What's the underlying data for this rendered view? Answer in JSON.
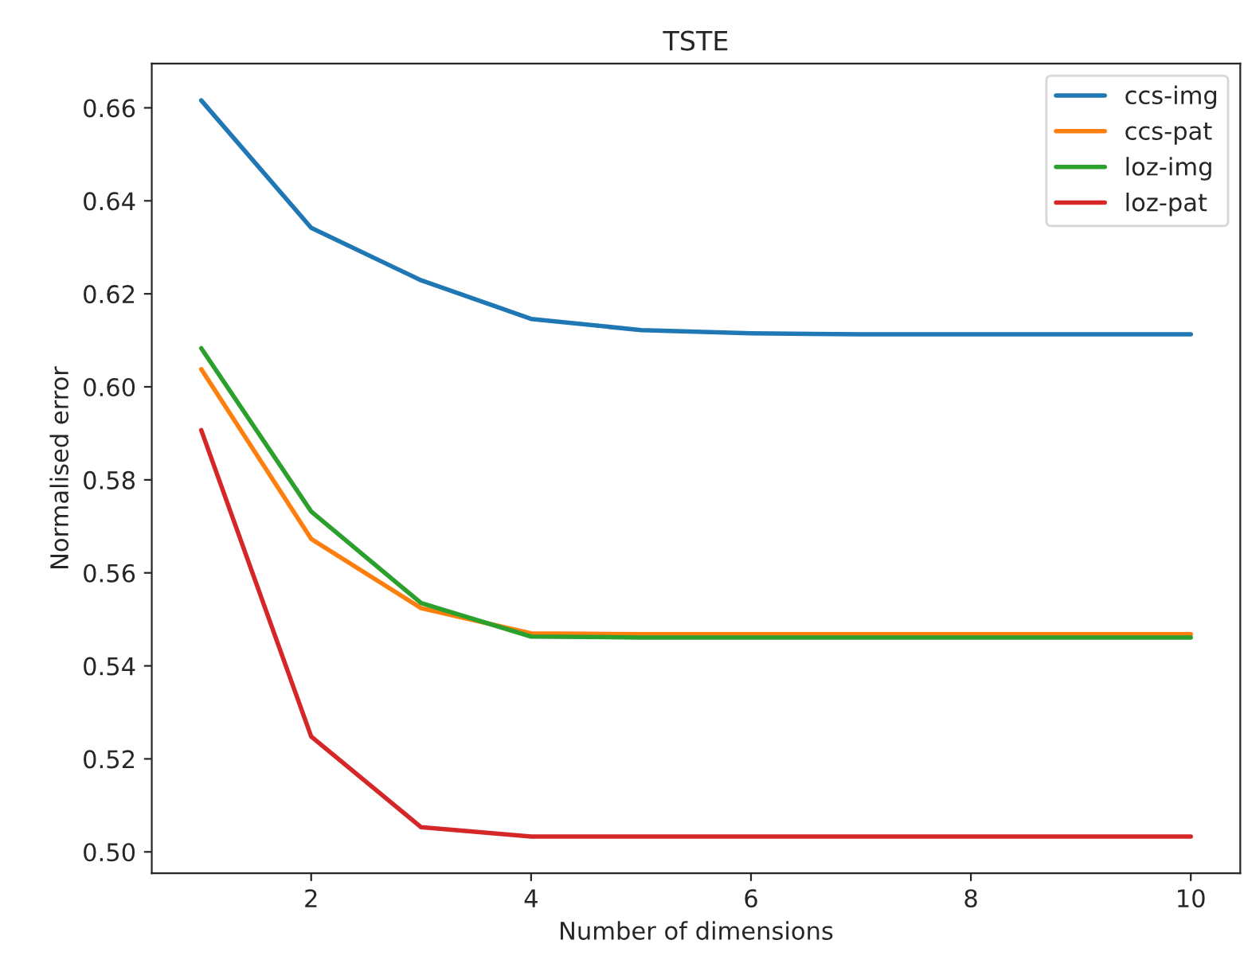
{
  "chart_data": {
    "type": "line",
    "title": "TSTE",
    "xlabel": "Number of dimensions",
    "ylabel": "Normalised error",
    "x": [
      1,
      2,
      3,
      4,
      5,
      6,
      7,
      8,
      9,
      10
    ],
    "series": [
      {
        "name": "ccs-img",
        "color": "#1f77b4",
        "values": [
          0.6616,
          0.6342,
          0.6229,
          0.6146,
          0.6122,
          0.6115,
          0.6113,
          0.6113,
          0.6113,
          0.6113
        ]
      },
      {
        "name": "ccs-pat",
        "color": "#ff7f0e",
        "values": [
          0.6038,
          0.5673,
          0.5524,
          0.547,
          0.5468,
          0.5468,
          0.5468,
          0.5468,
          0.5468,
          0.5468
        ]
      },
      {
        "name": "loz-img",
        "color": "#2ca02c",
        "values": [
          0.6083,
          0.5732,
          0.5535,
          0.5463,
          0.5461,
          0.5461,
          0.5461,
          0.5461,
          0.5461,
          0.5461
        ]
      },
      {
        "name": "loz-pat",
        "color": "#d62728",
        "values": [
          0.5907,
          0.5248,
          0.5053,
          0.5033,
          0.5033,
          0.5033,
          0.5033,
          0.5033,
          0.5033,
          0.5033
        ]
      }
    ],
    "xlim": [
      0.55,
      10.45
    ],
    "xticks": [
      2,
      4,
      6,
      8,
      10
    ],
    "ylim": [
      0.4954,
      0.6695
    ],
    "yticks": [
      {
        "value": 0.5,
        "label": "0.50"
      },
      {
        "value": 0.52,
        "label": "0.52"
      },
      {
        "value": 0.54,
        "label": "0.54"
      },
      {
        "value": 0.56,
        "label": "0.56"
      },
      {
        "value": 0.58,
        "label": "0.58"
      },
      {
        "value": 0.6,
        "label": "0.60"
      },
      {
        "value": 0.62,
        "label": "0.62"
      },
      {
        "value": 0.64,
        "label": "0.64"
      },
      {
        "value": 0.66,
        "label": "0.66"
      }
    ],
    "grid": false,
    "legend": "top right",
    "marker": "none",
    "line_style": "solid"
  }
}
